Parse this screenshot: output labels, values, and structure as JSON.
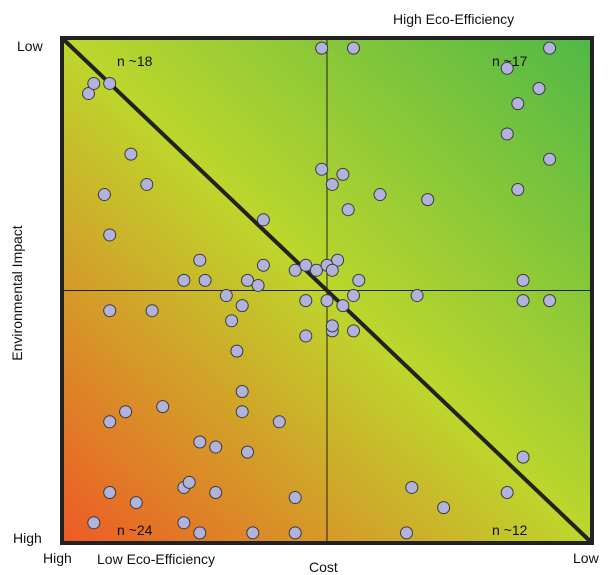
{
  "labels": {
    "top_right": "High Eco-Efficiency",
    "bottom_left": "Low Eco-Efficiency",
    "y_top": "Low",
    "y_bottom": "High",
    "x_left": "High",
    "x_right": "Low",
    "x_axis": "Cost",
    "y_axis": "Environmental Impact"
  },
  "colors": {
    "gradient_low": "#ee5a25",
    "gradient_mid": "#bdd62c",
    "gradient_high": "#4fb847",
    "point_fill": "#b1b3dd",
    "point_stroke": "#3a3a3a",
    "border": "#222222"
  },
  "chart_data": {
    "type": "scatter",
    "xlabel": "Cost",
    "ylabel": "Environmental Impact",
    "xlim": [
      0,
      1
    ],
    "ylim": [
      0,
      1
    ],
    "quadrant_counts": [
      {
        "quadrant": "top-left",
        "label": "n ~18"
      },
      {
        "quadrant": "top-right",
        "label": "n ~17"
      },
      {
        "quadrant": "bottom-left",
        "label": "n ~24"
      },
      {
        "quadrant": "bottom-right",
        "label": "n ~12"
      }
    ],
    "points": [
      [
        0.92,
        0.98
      ],
      [
        0.9,
        0.9
      ],
      [
        0.84,
        0.94
      ],
      [
        0.86,
        0.87
      ],
      [
        0.49,
        0.98
      ],
      [
        0.55,
        0.98
      ],
      [
        0.09,
        0.91
      ],
      [
        0.05,
        0.89
      ],
      [
        0.06,
        0.91
      ],
      [
        0.13,
        0.77
      ],
      [
        0.84,
        0.81
      ],
      [
        0.92,
        0.76
      ],
      [
        0.16,
        0.71
      ],
      [
        0.49,
        0.74
      ],
      [
        0.51,
        0.71
      ],
      [
        0.53,
        0.73
      ],
      [
        0.38,
        0.64
      ],
      [
        0.86,
        0.7
      ],
      [
        0.6,
        0.69
      ],
      [
        0.08,
        0.69
      ],
      [
        0.69,
        0.68
      ],
      [
        0.54,
        0.66
      ],
      [
        0.09,
        0.61
      ],
      [
        0.26,
        0.56
      ],
      [
        0.52,
        0.56
      ],
      [
        0.44,
        0.54
      ],
      [
        0.35,
        0.52
      ],
      [
        0.27,
        0.52
      ],
      [
        0.46,
        0.55
      ],
      [
        0.48,
        0.54
      ],
      [
        0.5,
        0.55
      ],
      [
        0.51,
        0.54
      ],
      [
        0.87,
        0.52
      ],
      [
        0.56,
        0.52
      ],
      [
        0.23,
        0.52
      ],
      [
        0.38,
        0.55
      ],
      [
        0.37,
        0.51
      ],
      [
        0.31,
        0.49
      ],
      [
        0.34,
        0.47
      ],
      [
        0.46,
        0.48
      ],
      [
        0.55,
        0.49
      ],
      [
        0.67,
        0.49
      ],
      [
        0.5,
        0.48
      ],
      [
        0.53,
        0.47
      ],
      [
        0.87,
        0.48
      ],
      [
        0.17,
        0.46
      ],
      [
        0.92,
        0.48
      ],
      [
        0.09,
        0.46
      ],
      [
        0.32,
        0.44
      ],
      [
        0.46,
        0.41
      ],
      [
        0.51,
        0.42
      ],
      [
        0.55,
        0.42
      ],
      [
        0.51,
        0.43
      ],
      [
        0.33,
        0.38
      ],
      [
        0.34,
        0.3
      ],
      [
        0.19,
        0.27
      ],
      [
        0.12,
        0.26
      ],
      [
        0.34,
        0.26
      ],
      [
        0.09,
        0.24
      ],
      [
        0.41,
        0.24
      ],
      [
        0.26,
        0.2
      ],
      [
        0.29,
        0.19
      ],
      [
        0.35,
        0.18
      ],
      [
        0.87,
        0.17
      ],
      [
        0.14,
        0.08
      ],
      [
        0.09,
        0.1
      ],
      [
        0.29,
        0.1
      ],
      [
        0.23,
        0.11
      ],
      [
        0.24,
        0.12
      ],
      [
        0.44,
        0.09
      ],
      [
        0.66,
        0.11
      ],
      [
        0.84,
        0.1
      ],
      [
        0.72,
        0.07
      ],
      [
        0.06,
        0.04
      ],
      [
        0.23,
        0.04
      ],
      [
        0.26,
        0.02
      ],
      [
        0.36,
        0.02
      ],
      [
        0.44,
        0.02
      ],
      [
        0.65,
        0.02
      ]
    ]
  }
}
